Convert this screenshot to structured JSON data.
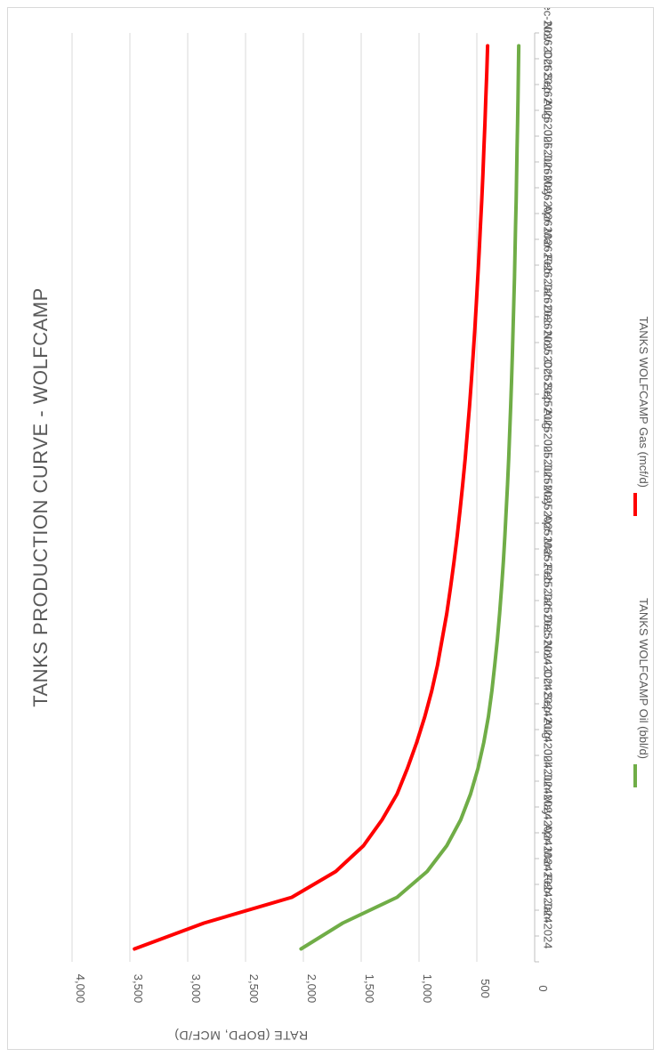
{
  "chart_data": {
    "type": "line",
    "title": "TANKS PRODUCTION CURVE - WOLFCAMP",
    "ylabel": "RATE (BOPD, MCF/D)",
    "xlabel": "",
    "ylim": [
      0,
      4000
    ],
    "yticks": [
      0,
      500,
      1000,
      1500,
      2000,
      2500,
      3000,
      3500,
      4000
    ],
    "ytick_labels": [
      "0",
      "500",
      "1,000",
      "1,500",
      "2,000",
      "2,500",
      "3,000",
      "3,500",
      "4,000"
    ],
    "categories": [
      "Jan-2024",
      "Feb-2024",
      "Mar-2024",
      "Apr-2024",
      "May-2024",
      "Jun-2024",
      "Jul-2024",
      "Aug-2024",
      "Sep-2024",
      "Oct-2024",
      "Nov-2024",
      "Dec-2024",
      "Jan-2025",
      "Feb-2025",
      "Mar-2025",
      "Apr-2025",
      "May-2025",
      "Jun-2025",
      "Jul-2025",
      "Aug-2025",
      "Sep-2025",
      "Oct-2025",
      "Nov-2025",
      "Dec-2025",
      "Jan-2026",
      "Feb-2026",
      "Mar-2026",
      "Apr-2026",
      "May-2026",
      "Jun-2026",
      "Jul-2026",
      "Aug-2026",
      "Sep-2026",
      "Oct-2026",
      "Nov-2026",
      "Dec-2026"
    ],
    "grid": true,
    "legend_position": "right",
    "orientation": "rotated-90",
    "series": [
      {
        "name": "TANKS WOLFCAMP Oil (bbl/d)",
        "color": "#70ad47",
        "values": [
          2020,
          1660,
          1190,
          930,
          760,
          640,
          555,
          490,
          440,
          400,
          370,
          345,
          322,
          303,
          286,
          271,
          258,
          246,
          235,
          225,
          216,
          208,
          200,
          193,
          187,
          181,
          175,
          170,
          165,
          160,
          156,
          152,
          148,
          144,
          141,
          138
        ]
      },
      {
        "name": "TANKS WOLFCAMP Gas (mcf/d)",
        "color": "#ff0000",
        "values": [
          3460,
          2860,
          2100,
          1720,
          1480,
          1320,
          1190,
          1100,
          1020,
          950,
          890,
          840,
          800,
          760,
          728,
          698,
          670,
          645,
          622,
          601,
          582,
          564,
          548,
          532,
          518,
          505,
          492,
          480,
          469,
          458,
          448,
          439,
          430,
          422,
          414,
          407
        ]
      }
    ]
  }
}
